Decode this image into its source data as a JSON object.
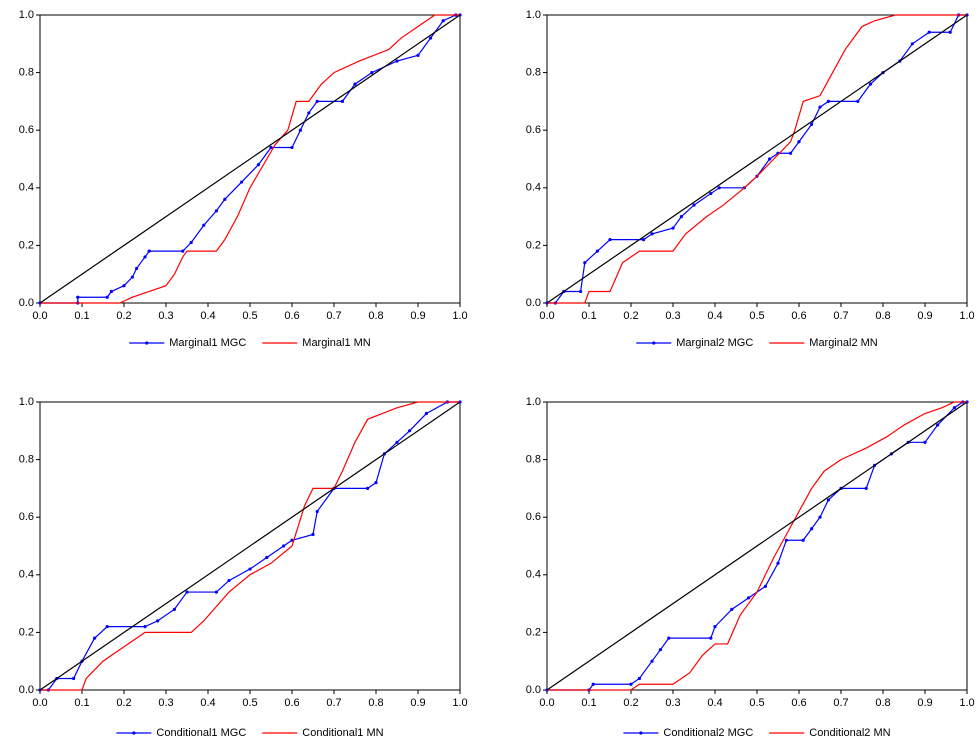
{
  "chart_data": [
    {
      "type": "line",
      "legend": "bottom",
      "xlim": [
        0,
        1
      ],
      "ylim": [
        0,
        1
      ],
      "xticks": [
        {
          "value": 0,
          "label": "0.0"
        },
        0.1,
        0.2,
        0.3,
        0.4,
        0.5,
        0.6,
        0.7,
        0.8,
        0.9,
        {
          "value": 1,
          "label": "1.0"
        }
      ],
      "yticks": [
        {
          "value": 0,
          "label": "0.0"
        },
        0.2,
        0.4,
        0.6,
        0.8,
        {
          "value": 1,
          "label": "1.0"
        }
      ],
      "series": [
        {
          "name": "Marginal1 MGC",
          "color": "#0000ff",
          "marker": true,
          "x": [
            0,
            0.09,
            0.09,
            0.16,
            0.17,
            0.2,
            0.22,
            0.23,
            0.25,
            0.26,
            0.34,
            0.36,
            0.39,
            0.42,
            0.44,
            0.48,
            0.52,
            0.55,
            0.6,
            0.62,
            0.64,
            0.66,
            0.72,
            0.75,
            0.79,
            0.85,
            0.9,
            0.93,
            0.96,
            0.99,
            1.0
          ],
          "values": [
            0,
            0,
            0.02,
            0.02,
            0.04,
            0.06,
            0.09,
            0.12,
            0.16,
            0.18,
            0.18,
            0.21,
            0.27,
            0.32,
            0.36,
            0.42,
            0.48,
            0.54,
            0.54,
            0.6,
            0.66,
            0.7,
            0.7,
            0.76,
            0.8,
            0.84,
            0.86,
            0.92,
            0.98,
            1.0,
            1.0
          ]
        },
        {
          "name": "Marginal1 MN",
          "color": "#ff0000",
          "marker": false,
          "x": [
            0,
            0.19,
            0.22,
            0.26,
            0.3,
            0.32,
            0.34,
            0.35,
            0.42,
            0.44,
            0.47,
            0.5,
            0.54,
            0.56,
            0.59,
            0.61,
            0.64,
            0.67,
            0.7,
            0.76,
            0.83,
            0.86,
            0.9,
            0.94,
            1.0
          ],
          "values": [
            0,
            0,
            0.02,
            0.04,
            0.06,
            0.1,
            0.16,
            0.18,
            0.18,
            0.22,
            0.3,
            0.4,
            0.5,
            0.55,
            0.6,
            0.7,
            0.7,
            0.76,
            0.8,
            0.84,
            0.88,
            0.92,
            0.96,
            1.0,
            1.0
          ]
        },
        {
          "color": "#000000",
          "marker": false,
          "x": [
            0,
            1
          ],
          "values": [
            0,
            1
          ]
        }
      ]
    },
    {
      "type": "line",
      "legend": "bottom",
      "xlim": [
        0,
        1
      ],
      "ylim": [
        0,
        1
      ],
      "xticks": [
        {
          "value": 0,
          "label": "0.0"
        },
        0.1,
        0.2,
        0.3,
        0.4,
        0.5,
        0.6,
        0.7,
        0.8,
        0.9,
        {
          "value": 1,
          "label": "1.0"
        }
      ],
      "yticks": [
        {
          "value": 0,
          "label": "0.0"
        },
        0.2,
        0.4,
        0.6,
        0.8,
        {
          "value": 1,
          "label": "1.0"
        }
      ],
      "series": [
        {
          "name": "Marginal2 MGC",
          "color": "#0000ff",
          "marker": true,
          "x": [
            0,
            0.02,
            0.04,
            0.08,
            0.09,
            0.12,
            0.15,
            0.23,
            0.25,
            0.3,
            0.32,
            0.35,
            0.39,
            0.41,
            0.47,
            0.5,
            0.53,
            0.55,
            0.58,
            0.6,
            0.63,
            0.65,
            0.67,
            0.74,
            0.77,
            0.8,
            0.84,
            0.87,
            0.91,
            0.96,
            0.98,
            1.0
          ],
          "values": [
            0,
            0,
            0.04,
            0.04,
            0.14,
            0.18,
            0.22,
            0.22,
            0.24,
            0.26,
            0.3,
            0.34,
            0.38,
            0.4,
            0.4,
            0.44,
            0.5,
            0.52,
            0.52,
            0.56,
            0.62,
            0.68,
            0.7,
            0.7,
            0.76,
            0.8,
            0.84,
            0.9,
            0.94,
            0.94,
            1.0,
            1.0
          ]
        },
        {
          "name": "Marginal2 MN",
          "color": "#ff0000",
          "marker": false,
          "x": [
            0,
            0.09,
            0.1,
            0.15,
            0.18,
            0.22,
            0.3,
            0.33,
            0.38,
            0.42,
            0.47,
            0.5,
            0.54,
            0.58,
            0.59,
            0.61,
            0.65,
            0.68,
            0.71,
            0.75,
            0.78,
            0.83,
            1.0
          ],
          "values": [
            0,
            0,
            0.04,
            0.04,
            0.14,
            0.18,
            0.18,
            0.24,
            0.3,
            0.34,
            0.4,
            0.44,
            0.5,
            0.56,
            0.6,
            0.7,
            0.72,
            0.8,
            0.88,
            0.96,
            0.98,
            1.0,
            1.0
          ]
        },
        {
          "color": "#000000",
          "marker": false,
          "x": [
            0,
            1
          ],
          "values": [
            0,
            1
          ]
        }
      ]
    },
    {
      "type": "line",
      "legend": "bottom",
      "xlim": [
        0,
        1
      ],
      "ylim": [
        0,
        1
      ],
      "xticks": [
        {
          "value": 0,
          "label": "0.0"
        },
        0.1,
        0.2,
        0.3,
        0.4,
        0.5,
        0.6,
        0.7,
        0.8,
        0.9,
        {
          "value": 1,
          "label": "1.0"
        }
      ],
      "yticks": [
        {
          "value": 0,
          "label": "0.0"
        },
        0.2,
        0.4,
        0.6,
        0.8,
        {
          "value": 1,
          "label": "1.0"
        }
      ],
      "series": [
        {
          "name": "Conditional1 MGC",
          "color": "#0000ff",
          "marker": true,
          "x": [
            0,
            0.02,
            0.04,
            0.08,
            0.1,
            0.13,
            0.16,
            0.25,
            0.28,
            0.32,
            0.35,
            0.42,
            0.45,
            0.5,
            0.54,
            0.58,
            0.6,
            0.65,
            0.66,
            0.7,
            0.78,
            0.8,
            0.82,
            0.85,
            0.88,
            0.92,
            0.97,
            1.0
          ],
          "values": [
            0,
            0,
            0.04,
            0.04,
            0.1,
            0.18,
            0.22,
            0.22,
            0.24,
            0.28,
            0.34,
            0.34,
            0.38,
            0.42,
            0.46,
            0.5,
            0.52,
            0.54,
            0.62,
            0.7,
            0.7,
            0.72,
            0.82,
            0.86,
            0.9,
            0.96,
            1.0,
            1.0
          ]
        },
        {
          "name": "Conditional1 MN",
          "color": "#ff0000",
          "marker": false,
          "x": [
            0,
            0.1,
            0.11,
            0.15,
            0.19,
            0.25,
            0.36,
            0.39,
            0.45,
            0.5,
            0.55,
            0.6,
            0.63,
            0.65,
            0.7,
            0.72,
            0.75,
            0.78,
            0.85,
            0.9,
            1.0
          ],
          "values": [
            0,
            0,
            0.04,
            0.1,
            0.14,
            0.2,
            0.2,
            0.24,
            0.34,
            0.4,
            0.44,
            0.5,
            0.64,
            0.7,
            0.7,
            0.76,
            0.86,
            0.94,
            0.98,
            1.0,
            1.0
          ]
        },
        {
          "color": "#000000",
          "marker": false,
          "x": [
            0,
            1
          ],
          "values": [
            0,
            1
          ]
        }
      ]
    },
    {
      "type": "line",
      "legend": "bottom",
      "xlim": [
        0,
        1
      ],
      "ylim": [
        0,
        1
      ],
      "xticks": [
        {
          "value": 0,
          "label": "0.0"
        },
        0.1,
        0.2,
        0.3,
        0.4,
        0.5,
        0.6,
        0.7,
        0.8,
        0.9,
        {
          "value": 1,
          "label": "1.0"
        }
      ],
      "yticks": [
        {
          "value": 0,
          "label": "0.0"
        },
        0.2,
        0.4,
        0.6,
        0.8,
        {
          "value": 1,
          "label": "1.0"
        }
      ],
      "series": [
        {
          "name": "Conditional2 MGC",
          "color": "#0000ff",
          "marker": true,
          "x": [
            0,
            0.1,
            0.11,
            0.2,
            0.22,
            0.25,
            0.27,
            0.29,
            0.39,
            0.4,
            0.44,
            0.48,
            0.52,
            0.55,
            0.57,
            0.61,
            0.63,
            0.65,
            0.67,
            0.7,
            0.76,
            0.78,
            0.82,
            0.86,
            0.9,
            0.93,
            0.97,
            0.99,
            1.0
          ],
          "values": [
            0,
            0,
            0.02,
            0.02,
            0.04,
            0.1,
            0.14,
            0.18,
            0.18,
            0.22,
            0.28,
            0.32,
            0.36,
            0.44,
            0.52,
            0.52,
            0.56,
            0.6,
            0.66,
            0.7,
            0.7,
            0.78,
            0.82,
            0.86,
            0.86,
            0.92,
            0.98,
            1.0,
            1.0
          ]
        },
        {
          "name": "Conditional2 MN",
          "color": "#ff0000",
          "marker": false,
          "x": [
            0,
            0.2,
            0.22,
            0.3,
            0.34,
            0.37,
            0.4,
            0.43,
            0.46,
            0.5,
            0.54,
            0.57,
            0.6,
            0.63,
            0.66,
            0.7,
            0.76,
            0.81,
            0.85,
            0.9,
            0.94,
            0.97,
            1.0
          ],
          "values": [
            0,
            0,
            0.02,
            0.02,
            0.06,
            0.12,
            0.16,
            0.16,
            0.26,
            0.34,
            0.46,
            0.54,
            0.62,
            0.7,
            0.76,
            0.8,
            0.84,
            0.88,
            0.92,
            0.96,
            0.98,
            1.0,
            1.0
          ]
        },
        {
          "color": "#000000",
          "marker": false,
          "x": [
            0,
            1
          ],
          "values": [
            0,
            1
          ]
        }
      ]
    }
  ]
}
